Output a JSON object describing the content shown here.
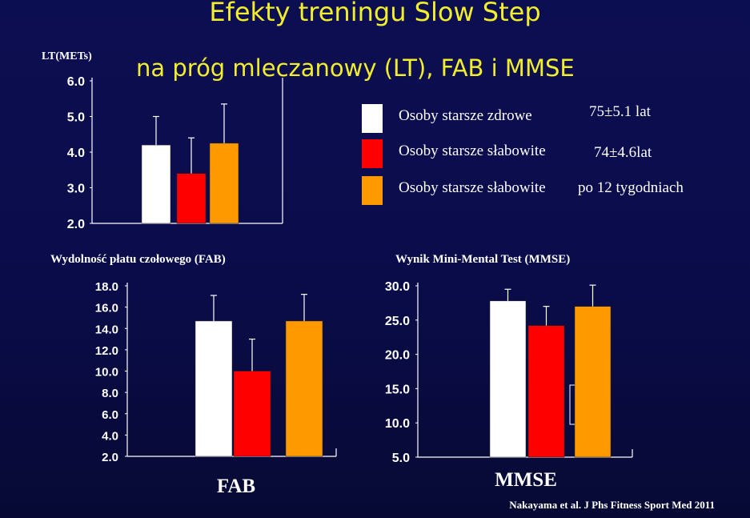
{
  "title": "Efekty treningu Slow Step",
  "subtitle": "na próg mleczanowy (LT), FAB i MMSE",
  "colors": {
    "background": "#0a0c4a",
    "title": "#f2ee2c",
    "axis": "#ffffff"
  },
  "legend": [
    {
      "label": "Osoby starsze zdrowe",
      "note": "75±5.1 lat",
      "color": "#ffffff"
    },
    {
      "label": "Osoby starsze słabowite",
      "note": "74±4.6lat",
      "color": "#ff0000"
    },
    {
      "label": "Osoby starsze słabowite",
      "note": "po 12 tygodniach",
      "color": "#ff9900"
    }
  ],
  "citation": "Nakayama et al. J Phs Fitness Sport Med 2011",
  "chart_data": [
    {
      "type": "bar",
      "title": "",
      "ylabel": "LT(METs)",
      "xlabel": "",
      "categories": [
        "Osoby starsze zdrowe",
        "Osoby starsze słabowite",
        "Osoby starsze słabowite po 12 tygodniach"
      ],
      "values": [
        4.2,
        3.4,
        4.25
      ],
      "errors": [
        0.8,
        1.0,
        1.1
      ],
      "colors": [
        "#ffffff",
        "#ff0000",
        "#ff9900"
      ],
      "ylim": [
        2.0,
        6.0
      ],
      "yticks": [
        "2.0",
        "3.0",
        "4.0",
        "5.0",
        "6.0"
      ],
      "ytick_values": [
        2.0,
        3.0,
        4.0,
        5.0,
        6.0
      ]
    },
    {
      "type": "bar",
      "title": "Wydolność płatu czołowego (FAB)",
      "ylabel": "",
      "xlabel": "FAB",
      "categories": [
        "Osoby starsze zdrowe",
        "Osoby starsze słabowite",
        "Osoby starsze słabowite po 12 tygodniach"
      ],
      "values": [
        14.7,
        10.0,
        14.7
      ],
      "errors": [
        2.4,
        3.0,
        2.5
      ],
      "colors": [
        "#ffffff",
        "#ff0000",
        "#ff9900"
      ],
      "ylim": [
        2.0,
        18.0
      ],
      "yticks": [
        "2.0",
        "4.0",
        "6.0",
        "8.0",
        "10.0",
        "12.0",
        "14.0",
        "16.0",
        "18.0"
      ],
      "ytick_values": [
        2,
        4,
        6,
        8,
        10,
        12,
        14,
        16,
        18
      ]
    },
    {
      "type": "bar",
      "title": "Wynik Mini-Mental Test (MMSE)",
      "ylabel": "",
      "xlabel": "MMSE",
      "categories": [
        "Osoby starsze zdrowe",
        "Osoby starsze słabowite",
        "Osoby starsze słabowite po 12 tygodniach"
      ],
      "values": [
        27.8,
        24.2,
        27.0
      ],
      "errors": [
        1.7,
        2.8,
        3.1
      ],
      "colors": [
        "#ffffff",
        "#ff0000",
        "#ff9900"
      ],
      "ylim": [
        5.0,
        30.0
      ],
      "yticks": [
        "5.0",
        "10.0",
        "15.0",
        "20.0",
        "25.0",
        "30.0"
      ],
      "ytick_values": [
        5,
        10,
        15,
        20,
        25,
        30
      ]
    }
  ]
}
